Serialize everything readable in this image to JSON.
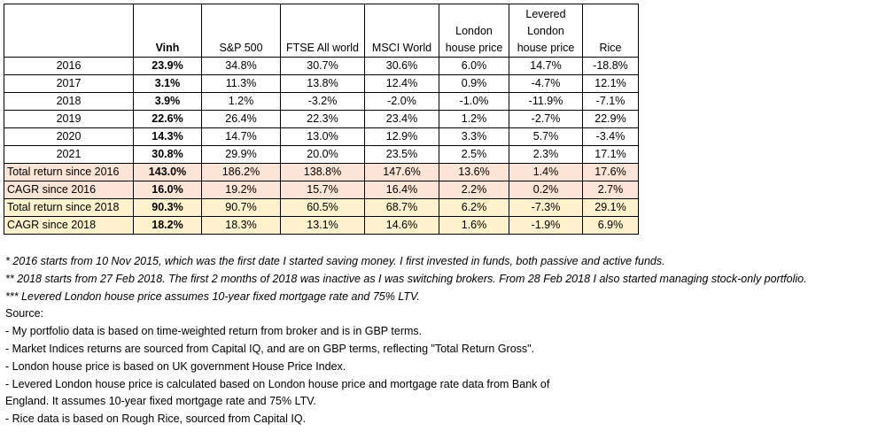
{
  "headers": [
    "",
    "Vinh",
    "S&P 500",
    "FTSE All world",
    "MSCI World",
    "London house price",
    "Levered London house price",
    "Rice"
  ],
  "rows": [
    {
      "label": "2016",
      "values": [
        "23.9%",
        "34.8%",
        "30.7%",
        "30.6%",
        "6.0%",
        "14.7%",
        "-18.8%"
      ]
    },
    {
      "label": "2017",
      "values": [
        "3.1%",
        "11.3%",
        "13.8%",
        "12.4%",
        "0.9%",
        "-4.7%",
        "12.1%"
      ]
    },
    {
      "label": "2018",
      "values": [
        "3.9%",
        "1.2%",
        "-3.2%",
        "-2.0%",
        "-1.0%",
        "-11.9%",
        "-7.1%"
      ]
    },
    {
      "label": "2019",
      "values": [
        "22.6%",
        "26.4%",
        "22.3%",
        "23.4%",
        "1.2%",
        "-2.7%",
        "22.9%"
      ]
    },
    {
      "label": "2020",
      "values": [
        "14.3%",
        "14.7%",
        "13.0%",
        "12.9%",
        "3.3%",
        "5.7%",
        "-3.4%"
      ]
    },
    {
      "label": "2021",
      "values": [
        "30.8%",
        "29.9%",
        "20.0%",
        "23.5%",
        "2.5%",
        "2.3%",
        "17.1%"
      ]
    },
    {
      "label": "Total return since 2016",
      "values": [
        "143.0%",
        "186.2%",
        "138.8%",
        "147.6%",
        "13.6%",
        "1.4%",
        "17.6%"
      ]
    },
    {
      "label": "CAGR since 2016",
      "values": [
        "16.0%",
        "19.2%",
        "15.7%",
        "16.4%",
        "2.2%",
        "0.2%",
        "2.7%"
      ]
    },
    {
      "label": "Total return since 2018",
      "values": [
        "90.3%",
        "90.7%",
        "60.5%",
        "68.7%",
        "6.2%",
        "-7.3%",
        "29.1%"
      ]
    },
    {
      "label": "CAGR since 2018",
      "values": [
        "18.2%",
        "18.3%",
        "13.1%",
        "14.6%",
        "1.6%",
        "-1.9%",
        "6.9%"
      ]
    }
  ],
  "notes": [
    "* 2016 starts from 10 Nov 2015, which was the first date I started saving money. I first invested in funds, both passive and active funds.",
    "** 2018 starts from 27 Feb 2018. The first 2 months of 2018 was inactive as I was switching brokers. From 28 Feb 2018 I also started managing stock-only portfolio.",
    "*** Levered London house price assumes 10-year fixed mortgage rate and 75% LTV.",
    "Source:",
    "- My portfolio data is based on time-weighted return from broker and is in GBP terms.",
    "- Market Indices returns are sourced from Capital IQ, and are on GBP terms, reflecting \"Total Return Gross\".",
    "- London house price is based on UK government House Price Index.",
    "- Levered London house price is calculated based on London house price and mortgage rate data from Bank of",
    "England. It assumes 10-year fixed mortgage rate and 75% LTV.",
    "- Rice data is based on Rough Rice, sourced from Capital IQ."
  ],
  "colors": {
    "pink": "#FCE4D6",
    "yellow": "#FFF2CC"
  }
}
